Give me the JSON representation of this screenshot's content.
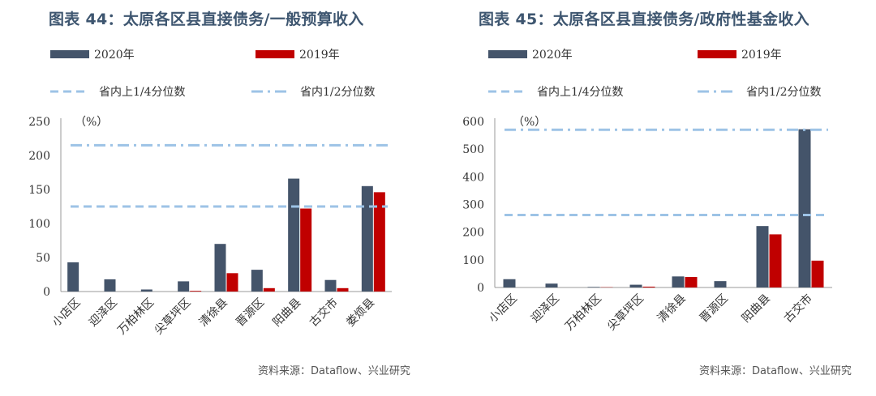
{
  "chart_data": [
    {
      "type": "bar",
      "title": "图表 44：太原各区县直接债务/一般预算收入",
      "unit_label": "（%）",
      "categories": [
        "小店区",
        "迎泽区",
        "万柏林区",
        "尖草坪区",
        "清徐县",
        "晋源区",
        "阳曲县",
        "古交市",
        "娄烦县"
      ],
      "series": [
        {
          "name": "2020年",
          "color": "#44546a",
          "values": [
            43,
            18,
            3,
            15,
            70,
            32,
            166,
            17,
            155
          ]
        },
        {
          "name": "2019年",
          "color": "#c00000",
          "values": [
            0,
            0,
            0,
            1,
            27,
            5,
            122,
            5,
            146
          ]
        }
      ],
      "reference_lines": [
        {
          "name": "省内上1/4分位数",
          "style": "dashed",
          "value": 125
        },
        {
          "name": "省内1/2分位数",
          "style": "dash-dot",
          "value": 215
        }
      ],
      "ylim": [
        0,
        250
      ],
      "yticks": [
        0,
        50,
        100,
        150,
        200,
        250
      ],
      "xlabel": "",
      "ylabel": "",
      "source": "资料来源：Dataflow、兴业研究"
    },
    {
      "type": "bar",
      "title": "图表 45：太原各区县直接债务/政府性基金收入",
      "unit_label": "（%）",
      "categories": [
        "小店区",
        "迎泽区",
        "万柏林区",
        "尖草坪区",
        "清徐县",
        "晋源区",
        "阳曲县",
        "古交市"
      ],
      "series": [
        {
          "name": "2020年",
          "color": "#44546a",
          "values": [
            30,
            14,
            2,
            10,
            40,
            23,
            222,
            572
          ]
        },
        {
          "name": "2019年",
          "color": "#c00000",
          "values": [
            0,
            0,
            1,
            3,
            38,
            0,
            192,
            97
          ]
        }
      ],
      "reference_lines": [
        {
          "name": "省内上1/4分位数",
          "style": "dashed",
          "value": 262
        },
        {
          "name": "省内1/2分位数",
          "style": "dash-dot",
          "value": 570
        }
      ],
      "ylim": [
        0,
        600
      ],
      "yticks": [
        0,
        100,
        200,
        300,
        400,
        500,
        600
      ],
      "xlabel": "",
      "ylabel": "",
      "source": "资料来源：Dataflow、兴业研究"
    }
  ],
  "colors": {
    "bar2020": "#44546a",
    "bar2019": "#c00000",
    "refline": "#9dc3e6",
    "title": "#3e5670"
  }
}
